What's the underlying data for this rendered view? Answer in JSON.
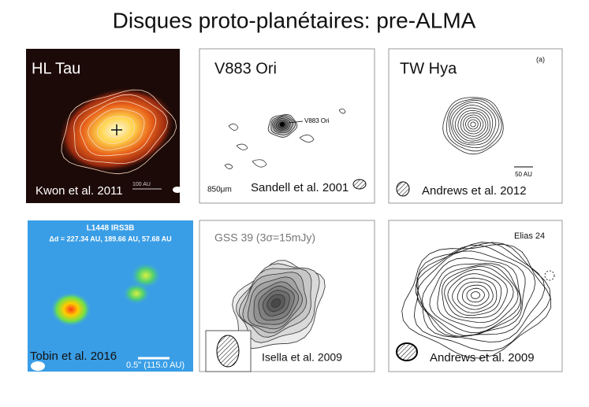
{
  "title": "Disques proto-planétaires:  pre-ALMA",
  "panels": [
    {
      "name": "HL Tau",
      "citation": "Kwon et al. 2011",
      "scale": "100 AU"
    },
    {
      "name": "V883 Ori",
      "citation": "Sandell et al. 2001",
      "annotation": "V883 Ori",
      "wavelength": "850μm"
    },
    {
      "name": "TW Hya",
      "citation": "Andrews et al. 2012",
      "panel_label": "(a)",
      "scale": "50 AU"
    },
    {
      "name": "L1448 IRS3B",
      "citation": "Tobin et al. 2016",
      "annotation": "Δd = 227.34 AU, 189.66 AU, 57.68 AU",
      "scale": "0.5\" (115.0 AU)"
    },
    {
      "name": "GSS 39 (3σ=15mJy)",
      "citation": "Isella et al. 2009"
    },
    {
      "name": "Elias 24",
      "citation": "Andrews et al. 2009"
    }
  ]
}
